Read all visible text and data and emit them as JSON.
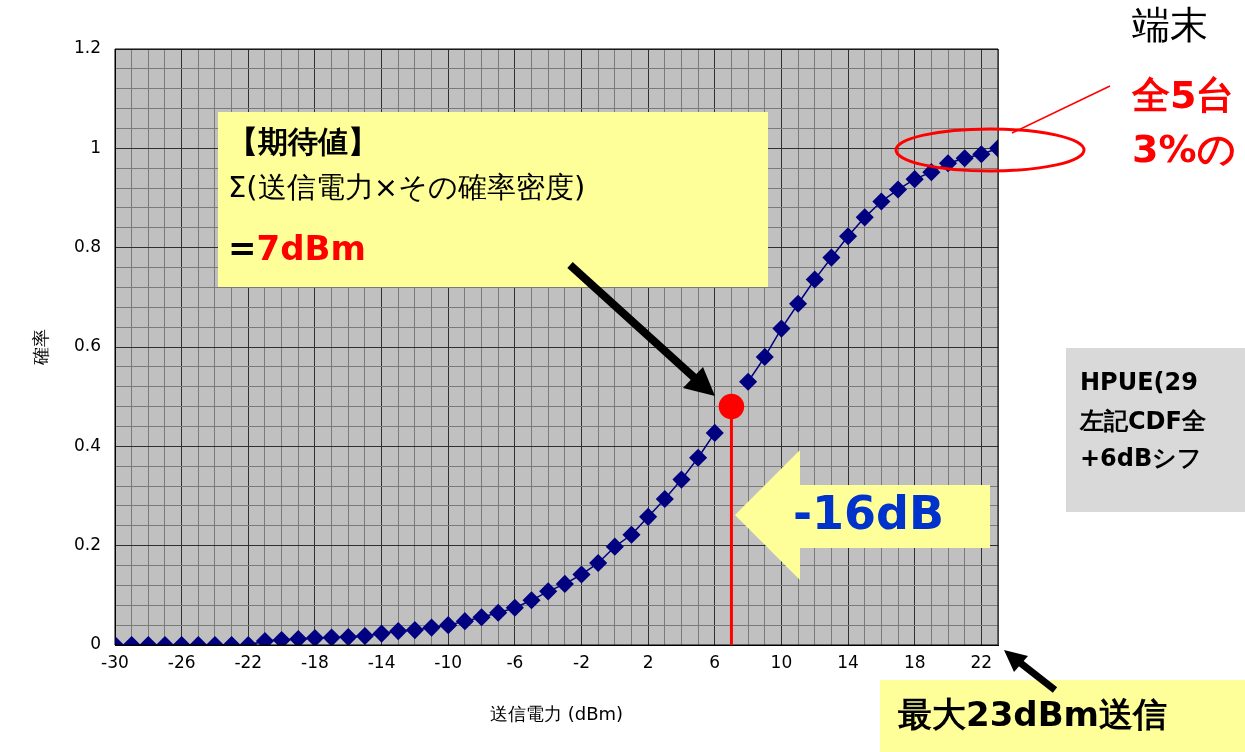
{
  "chart_data": {
    "type": "line",
    "xlabel": "送信電力 (dBm)",
    "ylabel": "確率",
    "x": [
      -30,
      -29,
      -28,
      -27,
      -26,
      -25,
      -24,
      -23,
      -22,
      -21,
      -20,
      -19,
      -18,
      -17,
      -16,
      -15,
      -14,
      -13,
      -12,
      -11,
      -10,
      -9,
      -8,
      -7,
      -6,
      -5,
      -4,
      -3,
      -2,
      -1,
      0,
      1,
      2,
      3,
      4,
      5,
      6,
      7,
      8,
      9,
      10,
      11,
      12,
      13,
      14,
      15,
      16,
      17,
      18,
      19,
      20,
      21,
      22,
      23
    ],
    "series": [
      {
        "color": "#000080",
        "values": [
          0,
          0,
          0,
          0,
          0,
          0,
          0,
          0,
          0,
          0.008,
          0.01,
          0.012,
          0.014,
          0.015,
          0.016,
          0.018,
          0.023,
          0.028,
          0.03,
          0.035,
          0.04,
          0.048,
          0.056,
          0.065,
          0.075,
          0.09,
          0.108,
          0.123,
          0.142,
          0.165,
          0.198,
          0.222,
          0.258,
          0.294,
          0.333,
          0.377,
          0.427,
          null,
          0.53,
          0.58,
          0.637,
          0.687,
          0.736,
          0.78,
          0.823,
          0.861,
          0.893,
          0.917,
          0.938,
          0.952,
          0.97,
          0.98,
          0.988,
          1
        ]
      },
      {
        "type": "scatter",
        "color": "#ff0000",
        "marker": "circle",
        "x": [
          7
        ],
        "values": [
          0.48
        ]
      }
    ],
    "xlim": [
      -30,
      23
    ],
    "xticks": [
      -30,
      {
        "value": -29,
        "label": null
      },
      {
        "value": -28,
        "label": null
      },
      {
        "value": -27,
        "label": null
      },
      -26,
      {
        "value": -25,
        "label": null
      },
      {
        "value": -24,
        "label": null
      },
      {
        "value": -23,
        "label": null
      },
      -22,
      {
        "value": -21,
        "label": null
      },
      {
        "value": -20,
        "label": null
      },
      {
        "value": -19,
        "label": null
      },
      -18,
      {
        "value": -17,
        "label": null
      },
      {
        "value": -16,
        "label": null
      },
      {
        "value": -15,
        "label": null
      },
      -14,
      {
        "value": -13,
        "label": null
      },
      {
        "value": -12,
        "label": null
      },
      {
        "value": -11,
        "label": null
      },
      -10,
      {
        "value": -9,
        "label": null
      },
      {
        "value": -8,
        "label": null
      },
      {
        "value": -7,
        "label": null
      },
      -6,
      {
        "value": -5,
        "label": null
      },
      {
        "value": -4,
        "label": null
      },
      {
        "value": -3,
        "label": null
      },
      -2,
      {
        "value": -1,
        "label": null
      },
      {
        "value": 0,
        "label": null
      },
      {
        "value": 1,
        "label": null
      },
      2,
      {
        "value": 3,
        "label": null
      },
      {
        "value": 4,
        "label": null
      },
      {
        "value": 5,
        "label": null
      },
      6,
      {
        "value": 7,
        "label": null
      },
      {
        "value": 8,
        "label": null
      },
      {
        "value": 9,
        "label": null
      },
      10,
      {
        "value": 11,
        "label": null
      },
      {
        "value": 12,
        "label": null
      },
      {
        "value": 13,
        "label": null
      },
      14,
      {
        "value": 15,
        "label": null
      },
      {
        "value": 16,
        "label": null
      },
      {
        "value": 17,
        "label": null
      },
      18,
      {
        "value": 19,
        "label": null
      },
      {
        "value": 20,
        "label": null
      },
      {
        "value": 21,
        "label": null
      },
      22,
      {
        "value": 23,
        "label": null
      }
    ],
    "ylim": [
      0,
      1.2
    ],
    "yticks": [
      0,
      {
        "value": 0.04,
        "label": null
      },
      {
        "value": 0.08,
        "label": null
      },
      {
        "value": 0.12,
        "label": null
      },
      {
        "value": 0.16,
        "label": null
      },
      0.2,
      {
        "value": 0.24,
        "label": null
      },
      {
        "value": 0.28,
        "label": null
      },
      {
        "value": 0.32,
        "label": null
      },
      {
        "value": 0.36,
        "label": null
      },
      0.4,
      {
        "value": 0.44,
        "label": null
      },
      {
        "value": 0.48,
        "label": null
      },
      {
        "value": 0.52,
        "label": null
      },
      {
        "value": 0.56,
        "label": null
      },
      0.6,
      {
        "value": 0.64,
        "label": null
      },
      {
        "value": 0.68,
        "label": null
      },
      {
        "value": 0.72,
        "label": null
      },
      {
        "value": 0.76,
        "label": null
      },
      0.8,
      {
        "value": 0.84,
        "label": null
      },
      {
        "value": 0.88,
        "label": null
      },
      {
        "value": 0.92,
        "label": null
      },
      {
        "value": 0.96,
        "label": null
      },
      1,
      {
        "value": 1.04,
        "label": null
      },
      {
        "value": 1.08,
        "label": null
      },
      {
        "value": 1.12,
        "label": null
      },
      {
        "value": 1.16,
        "label": null
      },
      1.2
    ],
    "grid": true,
    "legend": false,
    "marker": "diamond",
    "line_style": "solid",
    "ref_lines": [
      {
        "axis": "x",
        "value": 7,
        "color": "#ff0000"
      }
    ],
    "annotations": [
      "【期待値】",
      "Σ(送信電力×その確率密度)",
      "=7dBm",
      "-16dB",
      "端末",
      "全5台",
      "3%の",
      "HPUE(29",
      "左記CDF全",
      "+6dBシフ",
      "最大23dBm送信"
    ]
  }
}
